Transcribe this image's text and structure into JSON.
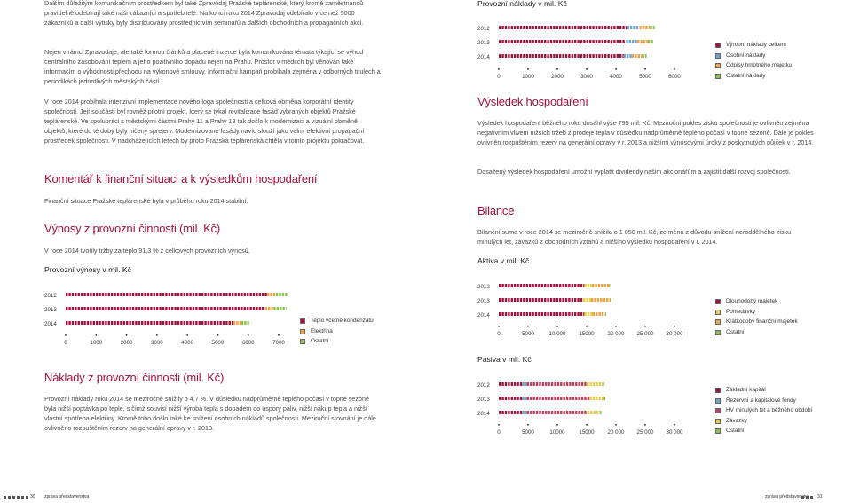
{
  "colors": {
    "accent": "#a1133b",
    "blue": "#6fa4cf",
    "orange": "#f0a24b",
    "green": "#8dc154",
    "yellow": "#e6cf4c"
  },
  "left": {
    "para1": "Dalším důležitým komunikačním prostředkem byl také Zpravodaj Pražské teplárenské, který kromě zaměstnanců pravidelně odebírají také naši zákazníci a spotřebitelé. Na konci roku 2014 Zpravodaj odebíralo více než 5000 zákazníků a další výtisky byly distribuovány prostřednictvím seminářů a dalších obchodních a propagačních akcí.",
    "para2": "Nejen v rámci Zpravodaje, ale také formou článků a placené inzerce byla komunikována témata týkající se výhod centrálního zásobování teplem a jeho pozitivního dopadu nejen na Prahu. Prostor v médiích byl věnován také informacím o výhodnosti přechodu na výkonové smlouvy. Informační kampaň probíhala zejména v odborných titulech a periodikách jednotlivých městských částí.",
    "para3": "V roce 2014 probíhala intenzivní implementace nového loga společnosti a celková obměna korporátní identity společnosti. Její součástí byl rovněž pilotní projekt, který se týkal revitalizace fasád vybraných objektů Pražské teplárenské. Ve spolupráci s městskými částmi Prahy 11 a Prahy 18 tak došlo k modernizaci a vizuální obměně objektů, které do té doby byly ničeny sprejery. Modernizované fasády navíc slouží jako velmi efektivní propagační prostředek společnosti. V nadcházejících letech by proto Pražská teplárenská chtěla v tomto projektu pokračovat.",
    "heading1": "Komentář k finanční situaci a k výsledkům hospodaření",
    "para4": "Finanční situace Pražské teplárenské byla v průběhu roku 2014 stabilní.",
    "heading2": "Výnosy z provozní činnosti (mil. Kč)",
    "para5": "V roce 2014 tvořily tržby za teplo 91,3 % z celkových provozních výnosů.",
    "chart_title": "Provozní výnosy v mil. Kč",
    "heading3": "Náklady z provozní činnosti (mil. Kč)",
    "para6": "Provozní náklady roku 2014 se meziročně snížily o 4,7 %. V důsledku nadprůměrně teplého počasí v topné sezóně byla nižší poptávka po teple, s čímž souvisí nižší výroba tepla s dopadem do úspory paliv, nižší nákup tepla a nižší vlastní spotřeba elektřiny. Kromě toho došlo také ke snížení osobních nákladů společnosti. Meziroční srovnání je dále ovlivněno rozpuštěním rezerv na generální opravy v r. 2013."
  },
  "right": {
    "chart_title": "Provozní náklady v mil. Kč",
    "heading1": "Výsledek hospodaření",
    "para1": "Výsledek hospodaření běžného roku dosáhl výše 795 mil. Kč. Meziroční pokles zisku společnosti je ovlivněn zejména negativním vlivem nižších tržeb z prodeje tepla v důsledku nadprůměrně teplého počasí v topné sezóně. Dále je pokles ovlivněn rozpuštěním rezerv na generální opravy v r. 2013 a nižšími výnosovými úroky z poskytnutých půjček v r. 2014.",
    "para2": "Dosažený výsledek hospodaření umožní vyplatit dividendy našim akcionářům a zajistit další rozvoj společnosti.",
    "heading2": "Bilance",
    "para3": "Bilanční suma v roce 2014 se meziročně snížila o 1 050 mil. Kč, zejména z důvodu snížení neroddělného zisku minulých let, závazků z obchodních vztahů a nižšího výsledku hospodaření v r. 2014.",
    "chart2_title": "Aktiva v mil. Kč",
    "chart3_title": "Pasiva v mil. Kč"
  },
  "footer": {
    "left_page": "30",
    "left_label": "zpráva představenstva",
    "right_label": "zpráva představenstva",
    "right_page": "31"
  },
  "chart_data": [
    {
      "type": "bar",
      "title": "Provozní výnosy v mil. Kč",
      "categories": [
        "2012",
        "2013",
        "2014"
      ],
      "xlim": [
        0,
        7000
      ],
      "xticks": [
        "0",
        "1000",
        "2000",
        "3000",
        "4000",
        "5000",
        "6000",
        "7000"
      ],
      "legend_placement": "right",
      "series": [
        {
          "name": "Teplo včetně kondenzátu",
          "color": "accent",
          "values": [
            6620,
            6550,
            5510
          ]
        },
        {
          "name": "Elektřina",
          "color": "orange",
          "values": [
            290,
            280,
            260
          ]
        },
        {
          "name": "Ostatní",
          "color": "green",
          "values": [
            380,
            420,
            260
          ]
        }
      ]
    },
    {
      "type": "bar",
      "title": "Provozní náklady v mil. Kč",
      "categories": [
        "2012",
        "2013",
        "2014"
      ],
      "xlim": [
        0,
        6000
      ],
      "xticks": [
        "0",
        "1000",
        "2000",
        "3000",
        "4000",
        "5000",
        "6000"
      ],
      "legend_placement": "right",
      "series": [
        {
          "name": "Výrobní náklady celkem",
          "color": "accent",
          "values": [
            4380,
            4340,
            4260
          ]
        },
        {
          "name": "Osobní náklady",
          "color": "blue",
          "values": [
            420,
            390,
            280
          ]
        },
        {
          "name": "Odpisy hmotného majetku",
          "color": "orange",
          "values": [
            360,
            360,
            350
          ]
        },
        {
          "name": "Ostatní náklady",
          "color": "green",
          "values": [
            160,
            200,
            160
          ]
        }
      ]
    },
    {
      "type": "bar",
      "title": "Aktiva v mil. Kč",
      "categories": [
        "2012",
        "2013",
        "2014"
      ],
      "xlim": [
        0,
        30000
      ],
      "xticks": [
        "0",
        "5000",
        "10 000",
        "15000",
        "20 000",
        "25 000",
        "30 000"
      ],
      "legend_placement": "right",
      "series": [
        {
          "name": "Dlouhodobý majetek",
          "color": "accent",
          "values": [
            14600,
            14400,
            14600
          ]
        },
        {
          "name": "Pohledávky",
          "color": "yellow",
          "values": [
            1300,
            1350,
            1400
          ]
        },
        {
          "name": "Krátkodobý finanční majetek",
          "color": "orange",
          "values": [
            2900,
            3250,
            2100
          ]
        },
        {
          "name": "Ostatní",
          "color": "green",
          "values": [
            200,
            200,
            200
          ]
        }
      ]
    },
    {
      "type": "bar",
      "title": "Pasiva v mil. Kč",
      "categories": [
        "2012",
        "2013",
        "2014"
      ],
      "xlim": [
        0,
        30000
      ],
      "xticks": [
        "0",
        "5000",
        "10000",
        "15000",
        "20 000",
        "25 000",
        "30 000"
      ],
      "legend_placement": "right",
      "series": [
        {
          "name": "Základní kapitál",
          "color": "accent",
          "values": [
            4000,
            4000,
            4000
          ]
        },
        {
          "name": "Rezervní a kapitálové fondy",
          "color": "blue",
          "values": [
            800,
            800,
            800
          ]
        },
        {
          "name": "HV minulých let a běžného období",
          "color": "accent2",
          "values": [
            10200,
            10700,
            10300
          ]
        },
        {
          "name": "Závazky",
          "color": "yellow",
          "values": [
            2700,
            2400,
            2100
          ]
        },
        {
          "name": "Ostatní",
          "color": "green",
          "values": [
            300,
            300,
            300
          ]
        }
      ]
    }
  ]
}
